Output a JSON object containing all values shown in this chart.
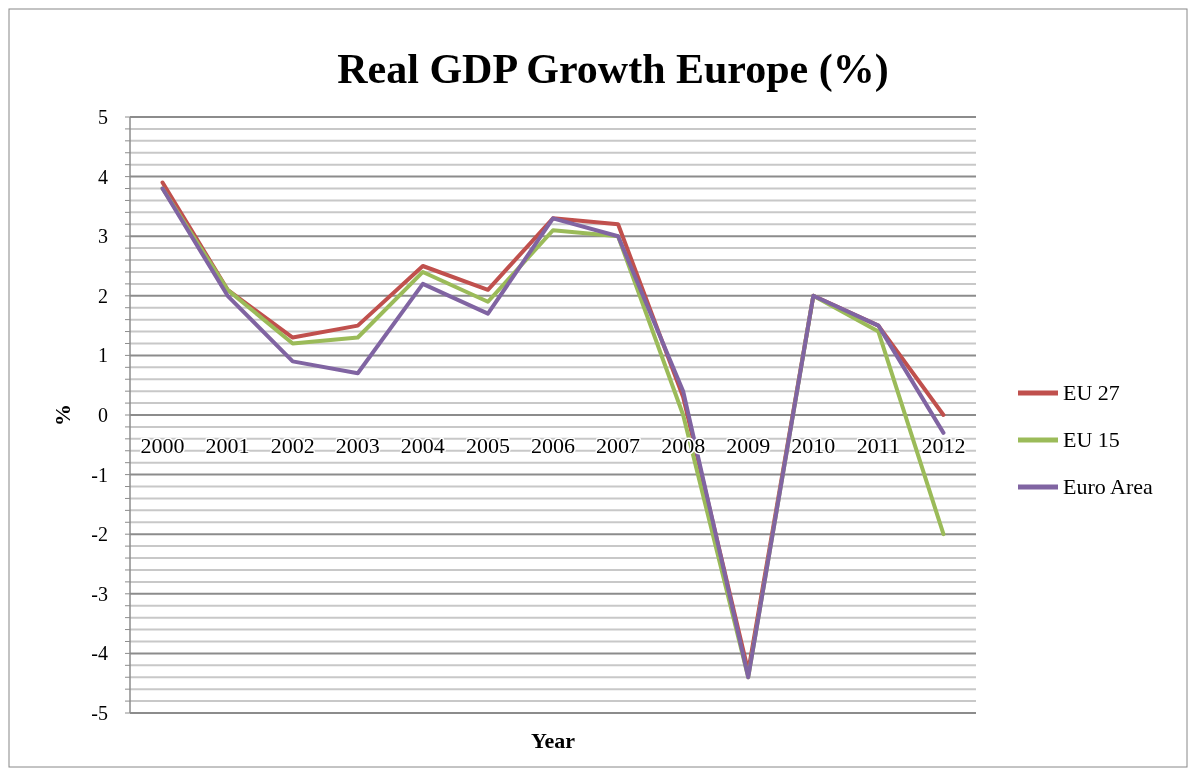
{
  "chart_data": {
    "type": "line",
    "title": "Real GDP Growth Europe (%)",
    "xlabel": "Year",
    "ylabel": "%",
    "categories": [
      "2000",
      "2001",
      "2002",
      "2003",
      "2004",
      "2005",
      "2006",
      "2007",
      "2008",
      "2009",
      "2010",
      "2011",
      "2012"
    ],
    "series": [
      {
        "name": "EU 27",
        "color": "#c0504d",
        "values": [
          3.9,
          2.1,
          1.3,
          1.5,
          2.5,
          2.1,
          3.3,
          3.2,
          0.3,
          -4.3,
          2.0,
          1.5,
          0.0
        ]
      },
      {
        "name": "EU 15",
        "color": "#9bbb59",
        "values": [
          3.8,
          2.1,
          1.2,
          1.3,
          2.4,
          1.9,
          3.1,
          3.0,
          0.0,
          -4.4,
          2.0,
          1.4,
          -2.0
        ]
      },
      {
        "name": "Euro Area",
        "color": "#8064a2",
        "values": [
          3.8,
          2.0,
          0.9,
          0.7,
          2.2,
          1.7,
          3.3,
          3.0,
          0.4,
          -4.4,
          2.0,
          1.5,
          -0.3
        ]
      }
    ],
    "ylim": [
      -5,
      5
    ],
    "yticks": [
      -5,
      {
        "value": -4.8,
        "label": null
      },
      {
        "value": -4.6,
        "label": null
      },
      {
        "value": -4.4,
        "label": null
      },
      {
        "value": -4.2,
        "label": null
      },
      -4,
      {
        "value": -3.8,
        "label": null
      },
      {
        "value": -3.6,
        "label": null
      },
      {
        "value": -3.4,
        "label": null
      },
      {
        "value": -3.2,
        "label": null
      },
      -3,
      {
        "value": -2.8,
        "label": null
      },
      {
        "value": -2.6,
        "label": null
      },
      {
        "value": -2.4,
        "label": null
      },
      {
        "value": -2.2,
        "label": null
      },
      -2,
      {
        "value": -1.8,
        "label": null
      },
      {
        "value": -1.6,
        "label": null
      },
      {
        "value": -1.4,
        "label": null
      },
      {
        "value": -1.2,
        "label": null
      },
      -1,
      {
        "value": -0.8,
        "label": null
      },
      {
        "value": -0.6,
        "label": null
      },
      {
        "value": -0.4,
        "label": null
      },
      {
        "value": -0.2,
        "label": null
      },
      0,
      {
        "value": 0.2,
        "label": null
      },
      {
        "value": 0.4,
        "label": null
      },
      {
        "value": 0.6,
        "label": null
      },
      {
        "value": 0.8,
        "label": null
      },
      1,
      {
        "value": 1.2,
        "label": null
      },
      {
        "value": 1.4,
        "label": null
      },
      {
        "value": 1.6,
        "label": null
      },
      {
        "value": 1.8,
        "label": null
      },
      2,
      {
        "value": 2.2,
        "label": null
      },
      {
        "value": 2.4,
        "label": null
      },
      {
        "value": 2.6,
        "label": null
      },
      {
        "value": 2.8,
        "label": null
      },
      3,
      {
        "value": 3.2,
        "label": null
      },
      {
        "value": 3.4,
        "label": null
      },
      {
        "value": 3.6,
        "label": null
      },
      {
        "value": 3.8,
        "label": null
      },
      4,
      {
        "value": 4.2,
        "label": null
      },
      {
        "value": 4.4,
        "label": null
      },
      {
        "value": 4.6,
        "label": null
      },
      {
        "value": 4.8,
        "label": null
      },
      5
    ],
    "grid": "y",
    "legend": "right",
    "marker": "none",
    "line_style": "solid"
  }
}
